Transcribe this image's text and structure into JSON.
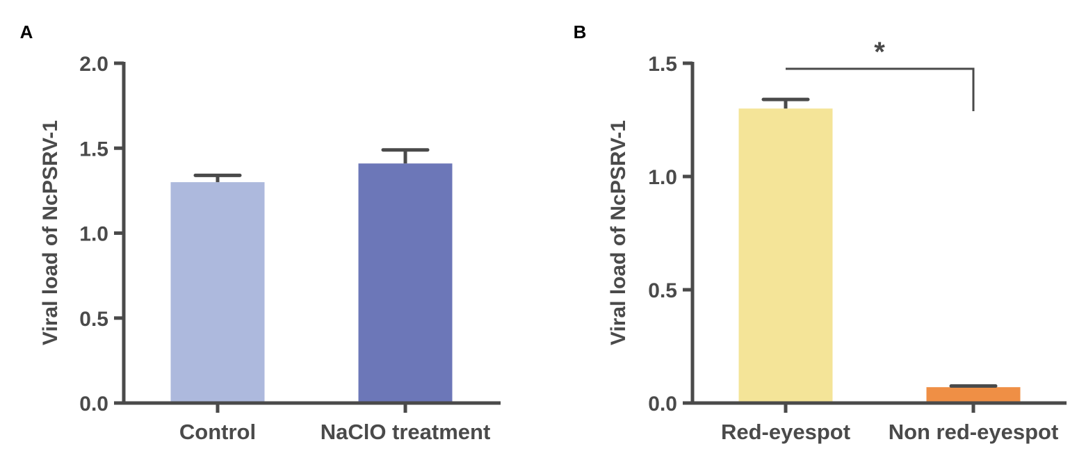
{
  "chart_data": [
    {
      "type": "bar",
      "panel_label": "A",
      "title": "",
      "ylabel": "Viral load of NcPSRV-1",
      "xlabel": "",
      "ylim": [
        0,
        2.0
      ],
      "yticks": [
        "0.0",
        "0.5",
        "1.0",
        "1.5",
        "2.0"
      ],
      "categories": [
        "Control",
        "NaClO treatment"
      ],
      "values": [
        1.3,
        1.41
      ],
      "errors": [
        0.04,
        0.08
      ],
      "colors": [
        "#adb9dd",
        "#6c77b8"
      ]
    },
    {
      "type": "bar",
      "panel_label": "B",
      "title": "",
      "ylabel": "Viral load of NcPSRV-1",
      "xlabel": "",
      "ylim": [
        0,
        1.5
      ],
      "yticks": [
        "0.0",
        "0.5",
        "1.0",
        "1.5"
      ],
      "categories": [
        "Red-eyespot",
        "Non red-eyespot"
      ],
      "values": [
        1.3,
        0.07
      ],
      "errors": [
        0.04,
        0.005
      ],
      "colors": [
        "#f4e498",
        "#ef8f45"
      ],
      "significance": {
        "label": "*",
        "between": [
          0,
          1
        ]
      }
    }
  ],
  "colors": {
    "axis": "#4a4a4a",
    "text": "#4a4a4a"
  }
}
